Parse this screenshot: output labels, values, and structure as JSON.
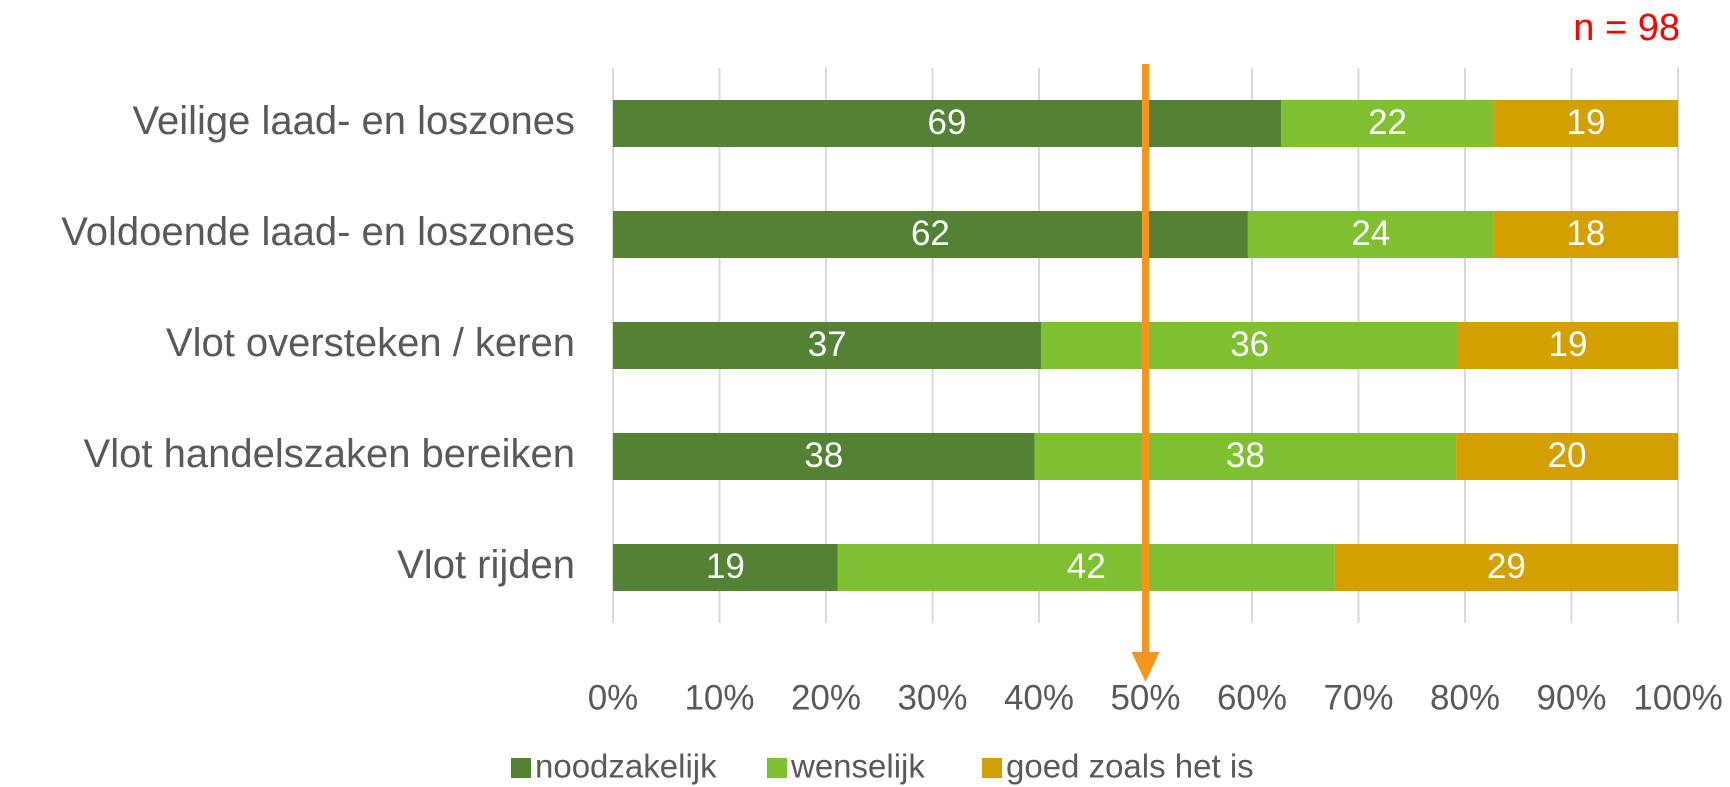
{
  "chart_data": {
    "type": "bar",
    "orientation": "horizontal",
    "stacking": "percent",
    "annotation": "n = 98",
    "annotation_color": "#ff0000",
    "categories": [
      "Veilige laad- en loszones",
      "Voldoende laad- en loszones",
      "Vlot oversteken / keren",
      "Vlot handelszaken bereiken",
      "Vlot rijden"
    ],
    "series": [
      {
        "name": "noodzakelijk",
        "color": "#548235",
        "values": [
          69,
          62,
          37,
          38,
          19
        ]
      },
      {
        "name": "wenselijk",
        "color": "#7fc031",
        "values": [
          22,
          24,
          36,
          38,
          42
        ]
      },
      {
        "name": "goed zoals het is",
        "color": "#d4a000",
        "values": [
          19,
          18,
          19,
          20,
          29
        ]
      }
    ],
    "xlim": [
      0,
      100
    ],
    "xticks": [
      {
        "value": 0,
        "label": "0%"
      },
      {
        "value": 10,
        "label": "10%"
      },
      {
        "value": 20,
        "label": "20%"
      },
      {
        "value": 30,
        "label": "30%"
      },
      {
        "value": 40,
        "label": "40%"
      },
      {
        "value": 50,
        "label": "50%"
      },
      {
        "value": 60,
        "label": "60%"
      },
      {
        "value": 70,
        "label": "70%"
      },
      {
        "value": 80,
        "label": "80%"
      },
      {
        "value": 90,
        "label": "90%"
      },
      {
        "value": 100,
        "label": "100%"
      }
    ],
    "grid": true,
    "reference_line": {
      "value": 50,
      "color": "#f7941d"
    },
    "legend": "bottom"
  }
}
